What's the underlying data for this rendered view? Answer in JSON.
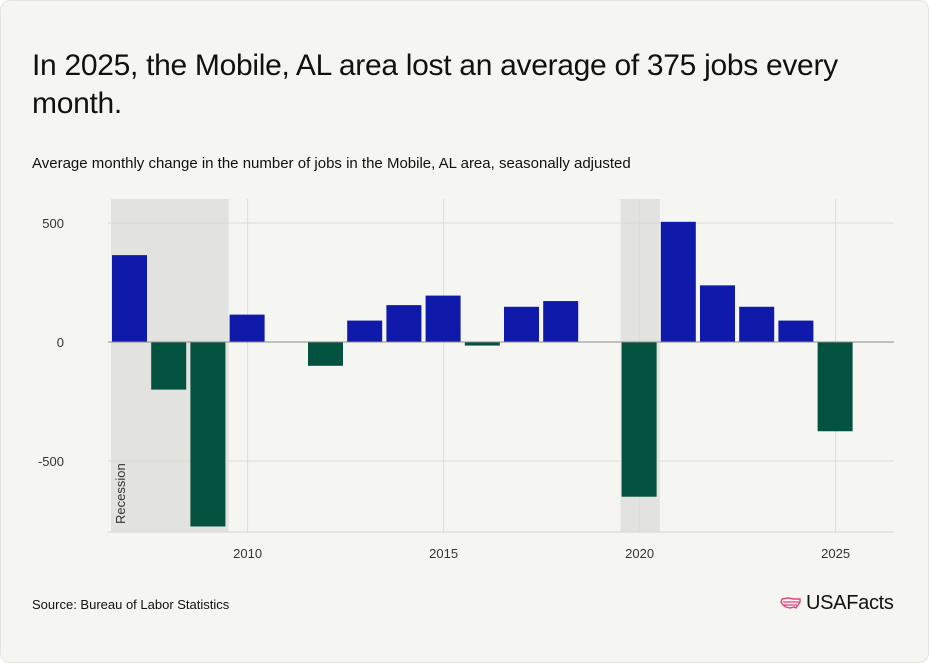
{
  "title": "In 2025, the Mobile, AL area lost an average of 375 jobs every month.",
  "subtitle": "Average monthly change in the number of jobs in the Mobile, AL area, seasonally adjusted",
  "source": "Source: Bureau of Labor Statistics",
  "logo_text": "USAFacts",
  "colors": {
    "positive": "#0f1aab",
    "negative": "#03523f",
    "recession_band": "#e2e2de",
    "background": "#f5f5f1",
    "logo_accent": "#e0457b"
  },
  "chart_data": {
    "type": "bar",
    "categories": [
      "2007",
      "2008",
      "2009",
      "2010",
      "2011",
      "2012",
      "2013",
      "2014",
      "2015",
      "2016",
      "2017",
      "2018",
      "2019",
      "2020",
      "2021",
      "2022",
      "2023",
      "2024",
      "2025"
    ],
    "values": [
      365,
      -200,
      -775,
      115,
      0,
      -100,
      90,
      155,
      195,
      -15,
      148,
      172,
      0,
      -650,
      505,
      238,
      148,
      90,
      -375
    ],
    "x_ticks": [
      "2010",
      "2015",
      "2020",
      "2025"
    ],
    "y_ticks": [
      500,
      0,
      -500
    ],
    "y_tick_labels": [
      "500",
      "0",
      "-500"
    ],
    "ylim": [
      -800,
      600
    ],
    "grid": true,
    "recession_periods": [
      {
        "start": "2007",
        "end": "2009"
      },
      {
        "start": "2020",
        "end": "2020"
      }
    ],
    "annotations": [
      "Recession"
    ]
  }
}
